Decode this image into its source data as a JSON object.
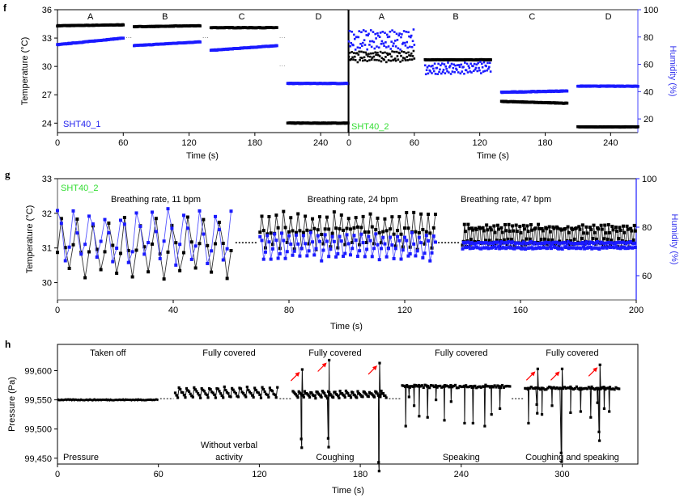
{
  "chart_data": [
    {
      "panel": "f",
      "type": "scatter",
      "subplots": [
        {
          "sensor_label": "SHT40_1",
          "sensor_label_color": "#2222ee",
          "xlabel": "Time (s)",
          "ylabel": "Temperature (°C)",
          "xlim": [
            0,
            265
          ],
          "ylim": [
            23,
            36
          ],
          "xticks": [
            0,
            60,
            120,
            180,
            240
          ],
          "yticks": [
            24,
            27,
            30,
            33,
            36
          ],
          "segment_labels": [
            {
              "text": "A",
              "x": 30
            },
            {
              "text": "B",
              "x": 98
            },
            {
              "text": "C",
              "x": 168
            },
            {
              "text": "D",
              "x": 238
            }
          ],
          "series": [
            {
              "name": "Temperature",
              "color": "#000000",
              "axis": "temperature",
              "segments": [
                {
                  "t": [
                    0,
                    60
                  ],
                  "start": 34.3,
                  "end": 34.4,
                  "amp": 0.05
                },
                {
                  "t": [
                    70,
                    130
                  ],
                  "start": 34.2,
                  "end": 34.3,
                  "amp": 0.05
                },
                {
                  "t": [
                    140,
                    200
                  ],
                  "start": 34.1,
                  "end": 34.1,
                  "amp": 0.05
                },
                {
                  "t": [
                    210,
                    265
                  ],
                  "start": 24.0,
                  "end": 24.0,
                  "amp": 0.05
                }
              ]
            },
            {
              "name": "Humidity",
              "color": "#1a1aff",
              "axis": "temperature",
              "segments": [
                {
                  "t": [
                    0,
                    60
                  ],
                  "start": 32.3,
                  "end": 33.0,
                  "amp": 0.05
                },
                {
                  "t": [
                    70,
                    130
                  ],
                  "start": 32.2,
                  "end": 32.6,
                  "amp": 0.05
                },
                {
                  "t": [
                    140,
                    200
                  ],
                  "start": 31.7,
                  "end": 32.2,
                  "amp": 0.05
                },
                {
                  "t": [
                    210,
                    265
                  ],
                  "start": 28.2,
                  "end": 28.2,
                  "amp": 0.05
                }
              ]
            }
          ]
        },
        {
          "sensor_label": "SHT40_2",
          "sensor_label_color": "#33dd33",
          "xlabel": "Time (s)",
          "ylabel2": "Humidity (%)",
          "xlim": [
            0,
            265
          ],
          "ylim": [
            23,
            36
          ],
          "ylim2": [
            10,
            100
          ],
          "xticks": [
            0,
            60,
            120,
            180,
            240
          ],
          "yticks2": [
            20,
            40,
            60,
            80,
            100
          ],
          "segment_labels": [
            {
              "text": "A",
              "x": 30
            },
            {
              "text": "B",
              "x": 98
            },
            {
              "text": "C",
              "x": 168
            },
            {
              "text": "D",
              "x": 238
            }
          ],
          "series": [
            {
              "name": "Temperature",
              "color": "#000000",
              "axis": "temperature",
              "segments": [
                {
                  "t": [
                    0,
                    60
                  ],
                  "start": 31.0,
                  "end": 31.1,
                  "amp": 0.5,
                  "period": 5
                },
                {
                  "t": [
                    70,
                    130
                  ],
                  "start": 30.7,
                  "end": 30.7,
                  "amp": 0.05
                },
                {
                  "t": [
                    140,
                    200
                  ],
                  "start": 26.3,
                  "end": 26.1,
                  "amp": 0.05
                },
                {
                  "t": [
                    210,
                    265
                  ],
                  "start": 23.6,
                  "end": 23.6,
                  "amp": 0.05
                }
              ]
            },
            {
              "name": "Humidity",
              "color": "#1a1aff",
              "axis": "humidity",
              "segments": [
                {
                  "t": [
                    0,
                    60
                  ],
                  "start": 78,
                  "end": 78,
                  "amp": 6,
                  "period": 5
                },
                {
                  "t": [
                    70,
                    130
                  ],
                  "start": 56,
                  "end": 58,
                  "amp": 3.5,
                  "period": 4
                },
                {
                  "t": [
                    140,
                    200
                  ],
                  "start": 39.5,
                  "end": 40.5,
                  "amp": 0.5
                },
                {
                  "t": [
                    210,
                    265
                  ],
                  "start": 44,
                  "end": 44,
                  "amp": 0.4
                }
              ]
            }
          ]
        }
      ]
    },
    {
      "panel": "g",
      "type": "line",
      "sensor_label": "SHT40_2",
      "sensor_label_color": "#33dd33",
      "xlabel": "Time (s)",
      "ylabel": "Temperature (°C)",
      "ylabel2": "Humidity (%)",
      "xlim": [
        0,
        200
      ],
      "ylim": [
        29.5,
        33
      ],
      "ylim2": [
        50,
        100
      ],
      "xticks": [
        0,
        40,
        80,
        120,
        160,
        200
      ],
      "yticks": [
        30,
        31,
        32,
        33
      ],
      "yticks2": [
        60,
        80,
        100
      ],
      "annotations": [
        {
          "text": "Breathing rate, 11 bpm",
          "x": 34
        },
        {
          "text": "Breathing rate, 24 bpm",
          "x": 102
        },
        {
          "text": "Breathing rate, 47 bpm",
          "x": 155
        }
      ],
      "series": [
        {
          "name": "Temperature",
          "color": "#000000",
          "axis": "temperature",
          "segments": [
            {
              "t": [
                0,
                61
              ],
              "mean": 31.0,
              "amp": 0.75,
              "bpm": 11,
              "phase": 0.0
            },
            {
              "t": [
                70,
                131
              ],
              "mean": 31.5,
              "amp": 0.45,
              "bpm": 24,
              "phase": 0.0
            },
            {
              "t": [
                140,
                200
              ],
              "mean": 31.35,
              "amp": 0.3,
              "bpm": 47,
              "phase": 0.0
            }
          ]
        },
        {
          "name": "Humidity",
          "color": "#1a1aff",
          "axis": "humidity",
          "segments": [
            {
              "t": [
                0,
                61
              ],
              "mean": 76,
              "amp": 10,
              "bpm": 11,
              "phase": 1.2
            },
            {
              "t": [
                70,
                131
              ],
              "mean": 72,
              "amp": 5,
              "bpm": 24,
              "phase": 1.2
            },
            {
              "t": [
                140,
                200
              ],
              "mean": 72.5,
              "amp": 1.5,
              "bpm": 47,
              "phase": 1.2
            }
          ]
        }
      ]
    },
    {
      "panel": "h",
      "type": "line",
      "xlabel": "Time (s)",
      "ylabel": "Pressure (Pa)",
      "xlim": [
        0,
        345
      ],
      "ylim": [
        99440,
        99645
      ],
      "xticks": [
        0,
        60,
        120,
        180,
        240,
        300
      ],
      "xtick_labels": [
        "0",
        "60",
        "120",
        "180",
        "240",
        "300"
      ],
      "yticks": [
        99450,
        99500,
        99550,
        99600
      ],
      "ytick_labels": [
        "99,450",
        "99,500",
        "99,550",
        "99,600"
      ],
      "series_label": "Pressure",
      "top_annotations": [
        {
          "text": "Taken off",
          "x": 30
        },
        {
          "text": "Fully covered",
          "x": 102
        },
        {
          "text": "Fully covered",
          "x": 165
        },
        {
          "text": "Fully covered",
          "x": 240
        },
        {
          "text": "Fully covered",
          "x": 306
        }
      ],
      "bottom_annotations": [
        {
          "text": "Without verbal",
          "x": 102,
          "line": 1
        },
        {
          "text": "activity",
          "x": 102,
          "line": 2
        },
        {
          "text": "Coughing",
          "x": 165,
          "line": 2
        },
        {
          "text": "Speaking",
          "x": 240,
          "line": 2
        },
        {
          "text": "Coughing and speaking",
          "x": 306,
          "line": 2
        }
      ],
      "segments": [
        {
          "name": "Taken off",
          "t": [
            0,
            60
          ],
          "baseline": 99550,
          "kind": "flat"
        },
        {
          "name": "Without verbal activity",
          "t": [
            70,
            131
          ],
          "baseline": 99562,
          "kind": "breathing",
          "amp": 10,
          "period": 4.5
        },
        {
          "name": "Coughing",
          "t": [
            140,
            196
          ],
          "baseline": 99558,
          "kind": "breathing",
          "amp": 6,
          "period": 3.5,
          "spikes": [
            {
              "t": 145.5,
              "peak": 99602,
              "trough": 99468
            },
            {
              "t": 161.5,
              "peak": 99618,
              "trough": 99469
            },
            {
              "t": 191.5,
              "peak": 99613,
              "trough": 99428
            }
          ]
        },
        {
          "name": "Speaking",
          "t": [
            205,
            269
          ],
          "baseline": 99573,
          "kind": "speaking",
          "dips": [
            [
              207,
              99505
            ],
            [
              209,
              99555
            ],
            [
              212,
              99540
            ],
            [
              215,
              99522
            ],
            [
              220,
              99520
            ],
            [
              225,
              99550
            ],
            [
              230,
              99515
            ],
            [
              234,
              99547
            ],
            [
              242,
              99510
            ],
            [
              247,
              99510
            ],
            [
              254,
              99505
            ],
            [
              258,
              99525
            ],
            [
              263,
              99535
            ]
          ]
        },
        {
          "name": "Coughing and speaking",
          "t": [
            278,
            334
          ],
          "baseline": 99570,
          "kind": "speaking",
          "dips": [
            [
              280,
              99510
            ],
            [
              288,
              99525
            ],
            [
              294,
              99540
            ],
            [
              305,
              99528
            ],
            [
              311,
              99530
            ],
            [
              317,
              99520
            ],
            [
              321,
              99545
            ],
            [
              325,
              99535
            ],
            [
              328,
              99530
            ]
          ],
          "spikes": [
            {
              "t": 285.5,
              "peak": 99603,
              "trough": 99527
            },
            {
              "t": 300,
              "peak": 99603,
              "trough": 99444
            },
            {
              "t": 322.5,
              "peak": 99610,
              "trough": 99480
            }
          ]
        }
      ],
      "arrow_color": "#ff0000"
    }
  ]
}
